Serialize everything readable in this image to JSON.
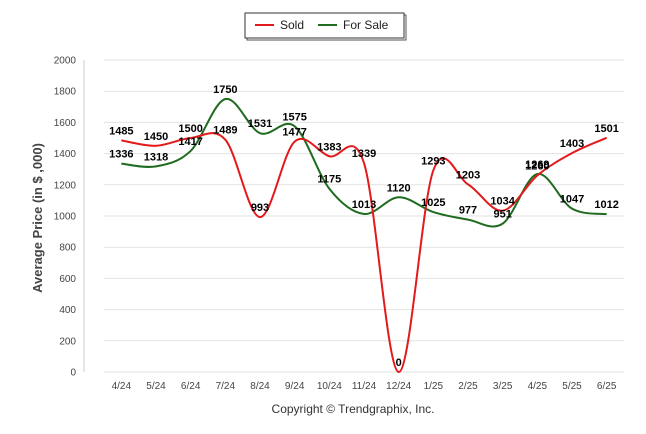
{
  "chart_data": {
    "type": "line",
    "categories": [
      "4/24",
      "5/24",
      "6/24",
      "7/24",
      "8/24",
      "9/24",
      "10/24",
      "11/24",
      "12/24",
      "1/25",
      "2/25",
      "3/25",
      "4/25",
      "5/25",
      "6/25"
    ],
    "series": [
      {
        "name": "Sold",
        "color": "#e31a1c",
        "values": [
          1485,
          1450,
          1500,
          1489,
          993,
          1477,
          1383,
          1339,
          0,
          1293,
          1203,
          1034,
          1260,
          1403,
          1501
        ]
      },
      {
        "name": "For Sale",
        "color": "#1f6b1f",
        "values": [
          1336,
          1318,
          1417,
          1750,
          1531,
          1575,
          1175,
          1013,
          1120,
          1025,
          977,
          951,
          1269,
          1047,
          1012
        ]
      }
    ],
    "ylabel": "Average Price (in $ ,000)",
    "xlabel": "",
    "ylim": [
      0,
      2000
    ],
    "yticks": [
      0,
      200,
      400,
      600,
      800,
      1000,
      1200,
      1400,
      1600,
      1800,
      2000
    ],
    "grid": true,
    "legend_position": "top-center",
    "credit": "Copyright © Trendgraphix, Inc."
  }
}
